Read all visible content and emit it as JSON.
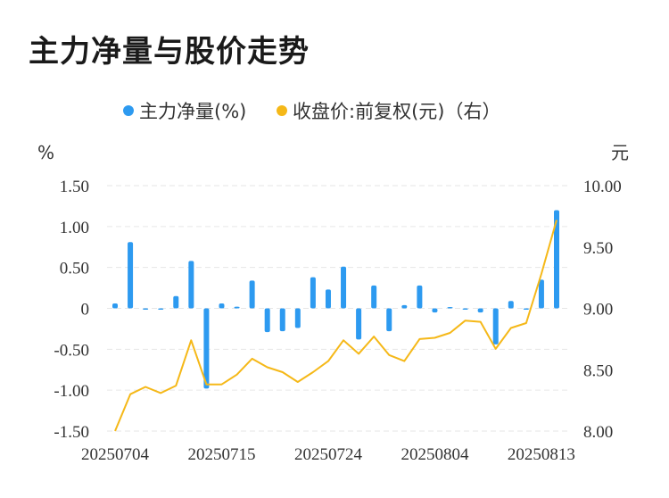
{
  "title": "主力净量与股价走势",
  "legend": {
    "bar_label": "主力净量(%)",
    "line_label": "收盘价:前复权(元)（右）"
  },
  "colors": {
    "bar": "#2d9af0",
    "line": "#f5b818",
    "grid": "#e6e6e6"
  },
  "chart_data": {
    "type": "bar+line",
    "left_axis": {
      "unit": "%",
      "ylim": [
        -1.5,
        1.5
      ],
      "ticks": [
        1.5,
        1.0,
        0.5,
        0,
        -0.5,
        -1.0,
        -1.5
      ],
      "tick_labels": [
        "1.50",
        "1.00",
        "0.50",
        "0",
        "-0.50",
        "-1.00",
        "-1.50"
      ]
    },
    "right_axis": {
      "unit": "元",
      "ylim": [
        8.0,
        10.0
      ],
      "ticks": [
        10.0,
        9.5,
        9.0,
        8.5,
        8.0
      ],
      "tick_labels": [
        "10.00",
        "9.50",
        "9.00",
        "8.50",
        "8.00"
      ]
    },
    "x_tick_labels": [
      "20250704",
      "20250715",
      "20250724",
      "20250804",
      "20250813"
    ],
    "x_tick_indices": [
      0,
      7,
      14,
      21,
      28
    ],
    "series": [
      {
        "name": "主力净量(%)",
        "type": "bar",
        "values": [
          0.06,
          0.81,
          -0.01,
          -0.01,
          0.15,
          0.58,
          -0.98,
          0.06,
          0.02,
          0.34,
          -0.29,
          -0.28,
          -0.24,
          0.38,
          0.23,
          0.51,
          -0.38,
          0.28,
          -0.28,
          0.04,
          0.28,
          -0.05,
          0.0,
          -0.01,
          -0.05,
          -0.44,
          0.09,
          -0.01,
          0.35,
          1.2
        ]
      },
      {
        "name": "收盘价:前复权(元)（右）",
        "type": "line",
        "values": [
          8.0,
          8.3,
          8.36,
          8.31,
          8.37,
          8.74,
          8.38,
          8.38,
          8.46,
          8.59,
          8.52,
          8.48,
          8.4,
          8.48,
          8.57,
          8.74,
          8.63,
          8.77,
          8.62,
          8.57,
          8.75,
          8.76,
          8.8,
          8.9,
          8.89,
          8.67,
          8.84,
          8.88,
          9.28,
          9.72
        ]
      }
    ]
  }
}
